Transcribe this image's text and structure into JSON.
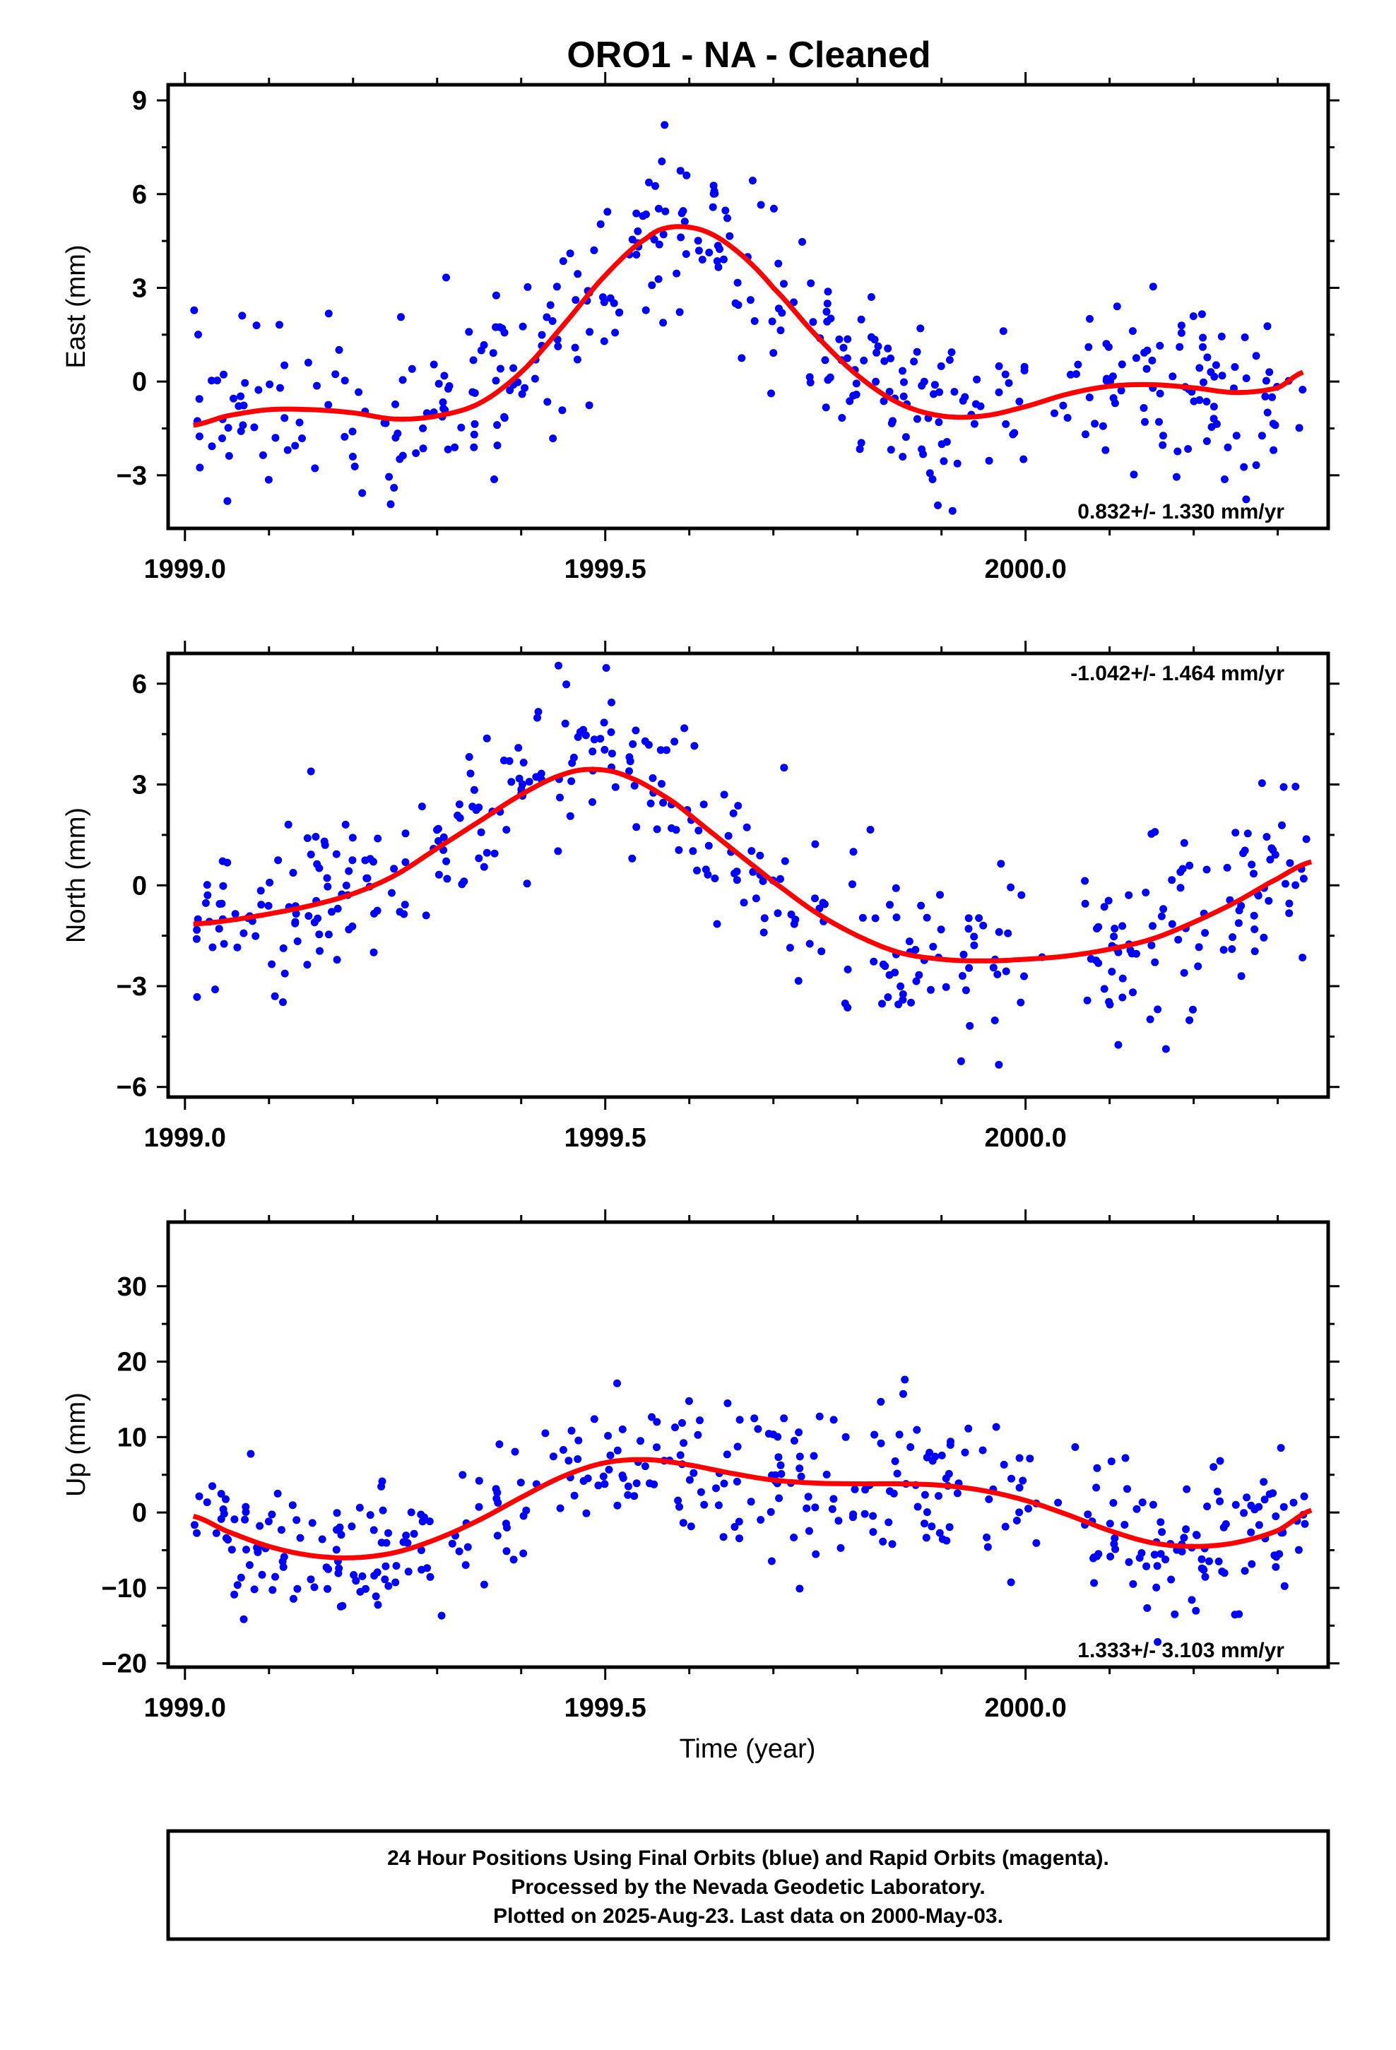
{
  "title": "ORO1  - NA - Cleaned",
  "x_axis_label": "Time (year)",
  "colors": {
    "points": "#0000ff",
    "fit": "#ff0000",
    "frame": "#000000",
    "rapid_points": "#ff00ff"
  },
  "footer": {
    "line1": "24 Hour Positions Using Final Orbits (blue) and Rapid Orbits (magenta).",
    "line2": "Processed by the Nevada Geodetic Laboratory.",
    "line3": "Plotted on 2025-Aug-23. Last data on 2000-May-03."
  },
  "chart_data": [
    {
      "type": "scatter",
      "name": "east",
      "ylabel": "East (mm)",
      "rate_label": "0.832+/- 1.330 mm/yr",
      "rate_position": "bottom-right",
      "xlim": [
        1998.98,
        2000.36
      ],
      "ylim": [
        -4.7,
        9.5
      ],
      "x_ticks": [
        1999.0,
        1999.5,
        2000.0
      ],
      "x_tick_labels": [
        "1999.0",
        "1999.5",
        "2000.0"
      ],
      "y_ticks": [
        -3,
        0,
        3,
        6,
        9
      ],
      "y_tick_labels": [
        "−3",
        "0",
        "3",
        "6",
        "9"
      ],
      "scatter_points_approx_count": 430,
      "fit_curve": {
        "x": [
          1999.01,
          1999.05,
          1999.1,
          1999.15,
          1999.2,
          1999.25,
          1999.3,
          1999.35,
          1999.4,
          1999.45,
          1999.5,
          1999.55,
          1999.58,
          1999.62,
          1999.66,
          1999.7,
          1999.75,
          1999.8,
          1999.85,
          1999.9,
          1999.95,
          2000.0,
          2000.05,
          2000.1,
          2000.15,
          2000.2,
          2000.25,
          2000.3,
          2000.33
        ],
        "y": [
          -1.4,
          -1.1,
          -0.9,
          -0.9,
          -1.0,
          -1.2,
          -1.1,
          -0.7,
          0.3,
          1.8,
          3.4,
          4.6,
          4.95,
          4.8,
          4.1,
          3.0,
          1.5,
          0.2,
          -0.7,
          -1.1,
          -1.1,
          -0.8,
          -0.4,
          -0.15,
          -0.1,
          -0.2,
          -0.35,
          -0.2,
          0.3
        ]
      }
    },
    {
      "type": "scatter",
      "name": "north",
      "ylabel": "North (mm)",
      "rate_label": "-1.042+/- 1.464 mm/yr",
      "rate_position": "top-right",
      "xlim": [
        1998.98,
        2000.36
      ],
      "ylim": [
        -6.3,
        6.9
      ],
      "x_ticks": [
        1999.0,
        1999.5,
        2000.0
      ],
      "x_tick_labels": [
        "1999.0",
        "1999.5",
        "2000.0"
      ],
      "y_ticks": [
        -6,
        -3,
        0,
        3,
        6
      ],
      "y_tick_labels": [
        "−6",
        "−3",
        "0",
        "3",
        "6"
      ],
      "scatter_points_approx_count": 420,
      "fit_curve": {
        "x": [
          1999.01,
          1999.05,
          1999.1,
          1999.15,
          1999.2,
          1999.25,
          1999.3,
          1999.35,
          1999.4,
          1999.45,
          1999.49,
          1999.53,
          1999.58,
          1999.62,
          1999.66,
          1999.7,
          1999.75,
          1999.8,
          1999.85,
          1999.9,
          1999.95,
          2000.0,
          2000.05,
          2000.1,
          2000.15,
          2000.2,
          2000.25,
          2000.3,
          2000.34
        ],
        "y": [
          -1.15,
          -1.05,
          -0.85,
          -0.6,
          -0.25,
          0.3,
          1.1,
          1.9,
          2.7,
          3.3,
          3.45,
          3.2,
          2.5,
          1.7,
          0.9,
          0.1,
          -0.8,
          -1.5,
          -2.0,
          -2.2,
          -2.25,
          -2.2,
          -2.1,
          -1.9,
          -1.6,
          -1.1,
          -0.5,
          0.2,
          0.7
        ]
      }
    },
    {
      "type": "scatter",
      "name": "up",
      "ylabel": "Up (mm)",
      "rate_label": "1.333+/- 3.103 mm/yr",
      "rate_position": "bottom-right",
      "xlim": [
        1998.98,
        2000.36
      ],
      "ylim": [
        -20.5,
        38.5
      ],
      "x_ticks": [
        1999.0,
        1999.5,
        2000.0
      ],
      "x_tick_labels": [
        "1999.0",
        "1999.5",
        "2000.0"
      ],
      "y_ticks": [
        -20,
        -10,
        0,
        10,
        20,
        30
      ],
      "y_tick_labels": [
        "−20",
        "−10",
        "0",
        "10",
        "20",
        "30"
      ],
      "scatter_points_approx_count": 430,
      "fit_curve": {
        "x": [
          1999.01,
          1999.05,
          1999.1,
          1999.15,
          1999.2,
          1999.25,
          1999.3,
          1999.35,
          1999.4,
          1999.45,
          1999.5,
          1999.55,
          1999.6,
          1999.65,
          1999.7,
          1999.75,
          1999.8,
          1999.85,
          1999.9,
          1999.95,
          2000.0,
          2000.05,
          2000.1,
          2000.15,
          2000.2,
          2000.25,
          2000.3,
          2000.34
        ],
        "y": [
          -0.5,
          -2.5,
          -4.5,
          -5.7,
          -6.0,
          -5.3,
          -3.5,
          -1.0,
          2.0,
          4.8,
          6.6,
          7.0,
          6.3,
          5.2,
          4.3,
          3.9,
          3.8,
          3.8,
          3.6,
          2.9,
          1.6,
          -0.3,
          -2.4,
          -4.0,
          -4.5,
          -4.0,
          -2.4,
          0.3
        ]
      }
    }
  ]
}
